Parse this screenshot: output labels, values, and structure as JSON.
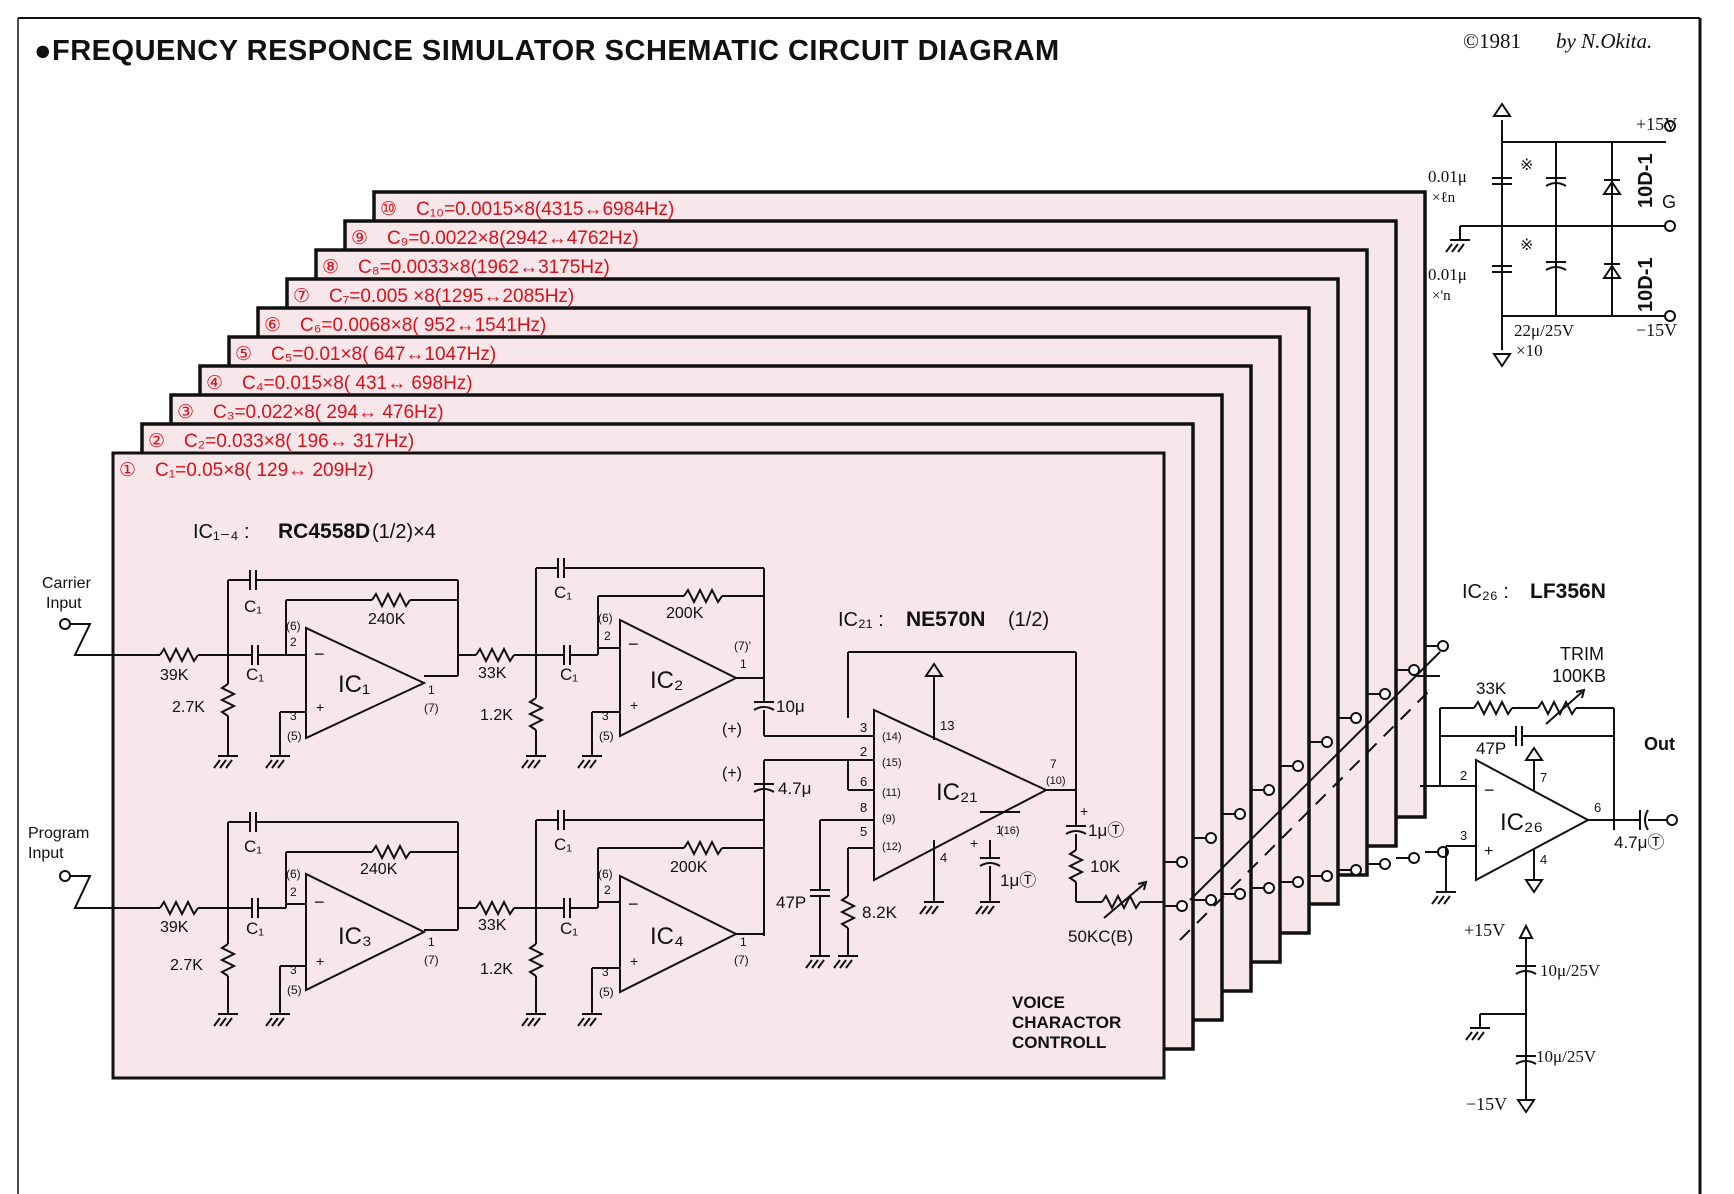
{
  "header": {
    "title": "●FREQUENCY  RESPONCE  SIMULATOR  SCHEMATIC  CIRCUIT  DIAGRAM",
    "copyright": "©1981",
    "author": "by N.Okita."
  },
  "boards": [
    {
      "num": "⑩",
      "label": "C₁₀=0.0015×8(4315↔6984Hz)"
    },
    {
      "num": "⑨",
      "label": "C₉=0.0022×8(2942↔4762Hz)"
    },
    {
      "num": "⑧",
      "label": "C₈=0.0033×8(1962↔3175Hz)"
    },
    {
      "num": "⑦",
      "label": "C₇=0.005 ×8(1295↔2085Hz)"
    },
    {
      "num": "⑥",
      "label": "C₆=0.0068×8( 952↔1541Hz)"
    },
    {
      "num": "⑤",
      "label": "C₅=0.01×8( 647↔1047Hz)"
    },
    {
      "num": "④",
      "label": "C₄=0.015×8( 431↔ 698Hz)"
    },
    {
      "num": "③",
      "label": "C₃=0.022×8( 294↔ 476Hz)"
    },
    {
      "num": "②",
      "label": "C₂=0.033×8( 196↔ 317Hz)"
    },
    {
      "num": "①",
      "label": "C₁=0.05×8( 129↔ 209Hz)"
    }
  ],
  "filter": {
    "ic_note_prefix": "IC₁₋₄ :",
    "ic_note_part": "RC4558D",
    "ic_note_suffix": "(1/2)×4",
    "carrier_input": [
      "Carrier",
      "Input"
    ],
    "program_input": [
      "Program",
      "Input"
    ],
    "ic1": "IC₁",
    "ic2": "IC₂",
    "ic3": "IC₃",
    "ic4": "IC₄",
    "c1": "C₁",
    "r240k": "240K",
    "r200k": "200K",
    "r39k": "39K",
    "r33k": "33K",
    "r27k": "2.7K",
    "r12k": "1.2K",
    "pin6": "(6)",
    "pin2": "2",
    "pin3": "3",
    "pin5": "(5)",
    "pin1": "1",
    "pin7": "(7)",
    "pin7q": "(7)'"
  },
  "compressor": {
    "ic_note_prefix": "IC₂₁ :",
    "ic_note_part": "NE570N",
    "ic_note_suffix": "(1/2)",
    "ic21": "IC₂₁",
    "c10u": "10μ",
    "c47u": "4.7μ",
    "plus": "(+)",
    "p3": "3",
    "p14": "(14)",
    "p2": "2",
    "p15": "(15)",
    "p6": "6",
    "p11": "(11)",
    "p8": "8",
    "p9": "(9)",
    "p5": "5",
    "p12": "(12)",
    "p13": "13",
    "p4": "4",
    "p7": "7",
    "p10": "(10)",
    "p1": "1",
    "p16": "(16)",
    "c47p": "47P",
    "r82k": "8.2K",
    "c1uT": "1μⓉ",
    "c1uT2": "1μⓉ",
    "r10k": "10K",
    "vr50k": "50KC(B)",
    "voice": [
      "VOICE",
      "CHARACTOR",
      "CONTROLL"
    ]
  },
  "output": {
    "ic_note_prefix": "IC₂₆ :",
    "ic_note_part": "LF356N",
    "ic26": "IC₂₆",
    "trim": "TRIM",
    "trim_val": "100KB",
    "r33k": "33K",
    "c47p": "47P",
    "out": "Out",
    "c47uT": "4.7μⓉ",
    "p2": "2",
    "p3": "3",
    "p7": "7",
    "p4": "4",
    "p6": "6"
  },
  "power": {
    "p15": "+15V",
    "m15": "−15V",
    "g": "G",
    "c001a": "0.01μ",
    "xn_a": "×ℓn",
    "c001b": "0.01μ",
    "xn_b": "×'n",
    "c22": "22μ/25V",
    "x10": "×10",
    "diode1": "10D-1",
    "diode2": "10D-1",
    "star": "※",
    "dec_p15": "+15V",
    "dec_c1": "10μ/25V",
    "dec_c2": "10μ/25V",
    "dec_m15": "−15V"
  },
  "colors": {
    "board_fill": "#f7e6ea",
    "board_stroke": "#111111",
    "label_red": "#d8121a"
  }
}
